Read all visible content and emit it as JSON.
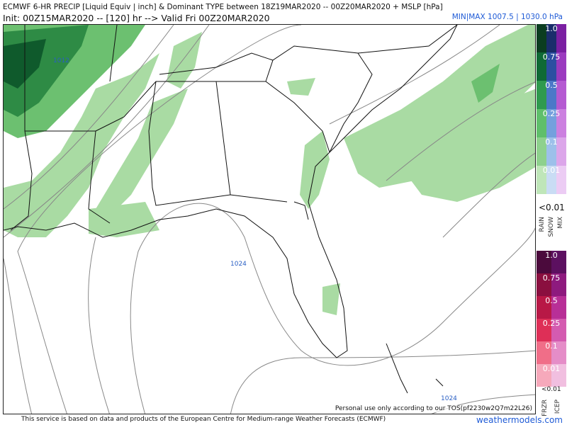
{
  "header": {
    "title": "ECMWF 6-HR PRECIP [Liquid Equiv | inch] & Dominant TYPE between 18Z19MAR2020 -- 00Z20MAR2020 + MSLP [hPa]",
    "subtitle": "Init: 00Z15MAR2020 -- [120] hr --> Valid Fri 00Z20MAR2020",
    "minmax": "MIN|MAX 1007.5 | 1030.0 hPa"
  },
  "map": {
    "isobar_labels": [
      "1012",
      "1024",
      "1024"
    ],
    "tos_note": "Personal use only according to our TOS(pf2230w2Q7m22L26)",
    "colors": {
      "precip_light": "#a9dba3",
      "precip_mid": "#6cc070",
      "precip_dark": "#2e8b45",
      "precip_darkest": "#0f5a2c",
      "borders": "#111111",
      "isobars": "#888888"
    }
  },
  "legend": {
    "rain_snow_mix": {
      "levels": [
        "1.0",
        "0.75",
        "0.5",
        "0.25",
        "0.1",
        "0.01"
      ],
      "rain_colors": [
        "#0b3d20",
        "#0f6a35",
        "#2f9a4e",
        "#5fbf6b",
        "#8ed18d",
        "#bfe6b9"
      ],
      "snow_colors": [
        "#1a2d6b",
        "#2c4fa1",
        "#4c78c8",
        "#74a0dd",
        "#9dc0ea",
        "#c9dcf4"
      ],
      "mix_colors": [
        "#7b1fa2",
        "#9b3bbf",
        "#b55ad2",
        "#cc80e0",
        "#dca6ea",
        "#ecccf4"
      ],
      "below": "<0.01",
      "type_labels": [
        "RAIN",
        "SNOW",
        "MIX"
      ]
    },
    "frzr_icep": {
      "levels": [
        "1.0",
        "0.75",
        "0.5",
        "0.25",
        "0.1",
        "0.01"
      ],
      "frzr_colors": [
        "#4b0a3c",
        "#8a0f3f",
        "#b81846",
        "#de2f57",
        "#f06e88",
        "#f6a9bb"
      ],
      "icep_colors": [
        "#5c1060",
        "#8e1a7e",
        "#b82f97",
        "#d45bb0",
        "#e58dc8",
        "#f1bfe0"
      ],
      "below": "<0.01",
      "type_labels": [
        "FRZR",
        "ICEP"
      ]
    }
  },
  "footer": {
    "credit": "This service is based on data and products of the European Centre for Medium-range Weather Forecasts (ECMWF)",
    "brand": "weathermodels.com"
  }
}
